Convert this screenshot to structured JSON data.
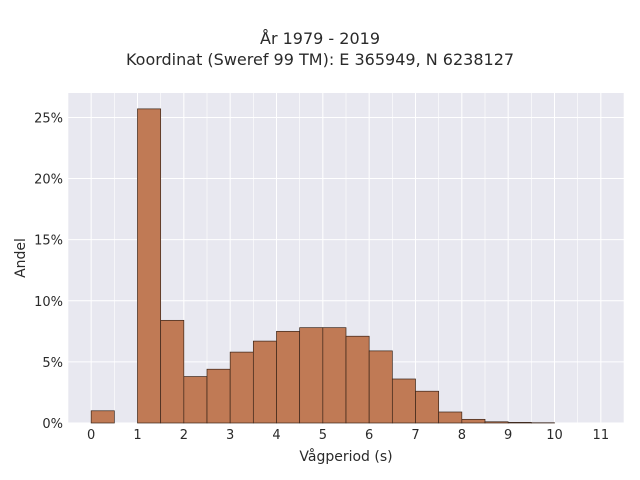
{
  "chart_data": {
    "type": "bar",
    "title": "År 1979 - 2019",
    "subtitle": "Koordinat (Sweref 99 TM): E 365949, N 6238127",
    "xlabel": "Vågperiod (s)",
    "ylabel": "Andel",
    "x_ticks": [
      0,
      1,
      2,
      3,
      4,
      5,
      6,
      7,
      8,
      9,
      10,
      11
    ],
    "y_ticks": [
      0,
      5,
      10,
      15,
      20,
      25
    ],
    "y_tick_suffix": "%",
    "xlim": [
      -0.5,
      11.5
    ],
    "ylim": [
      0,
      27
    ],
    "bin_width": 0.5,
    "bins": [
      {
        "x0": 0.0,
        "value": 1.0
      },
      {
        "x0": 1.0,
        "value": 25.7
      },
      {
        "x0": 1.5,
        "value": 8.4
      },
      {
        "x0": 2.0,
        "value": 3.8
      },
      {
        "x0": 2.5,
        "value": 4.4
      },
      {
        "x0": 3.0,
        "value": 5.8
      },
      {
        "x0": 3.5,
        "value": 6.7
      },
      {
        "x0": 4.0,
        "value": 7.5
      },
      {
        "x0": 4.5,
        "value": 7.8
      },
      {
        "x0": 5.0,
        "value": 7.8
      },
      {
        "x0": 5.5,
        "value": 7.1
      },
      {
        "x0": 6.0,
        "value": 5.9
      },
      {
        "x0": 6.5,
        "value": 3.6
      },
      {
        "x0": 7.0,
        "value": 2.6
      },
      {
        "x0": 7.5,
        "value": 0.9
      },
      {
        "x0": 8.0,
        "value": 0.3
      },
      {
        "x0": 8.5,
        "value": 0.1
      },
      {
        "x0": 9.0,
        "value": 0.05
      },
      {
        "x0": 9.5,
        "value": 0.02
      }
    ],
    "grid": true,
    "colors": {
      "bar_fill": "#c07a55",
      "bar_stroke": "#3a2418",
      "plot_background": "#e8e8f0",
      "grid": "#ffffff"
    }
  }
}
